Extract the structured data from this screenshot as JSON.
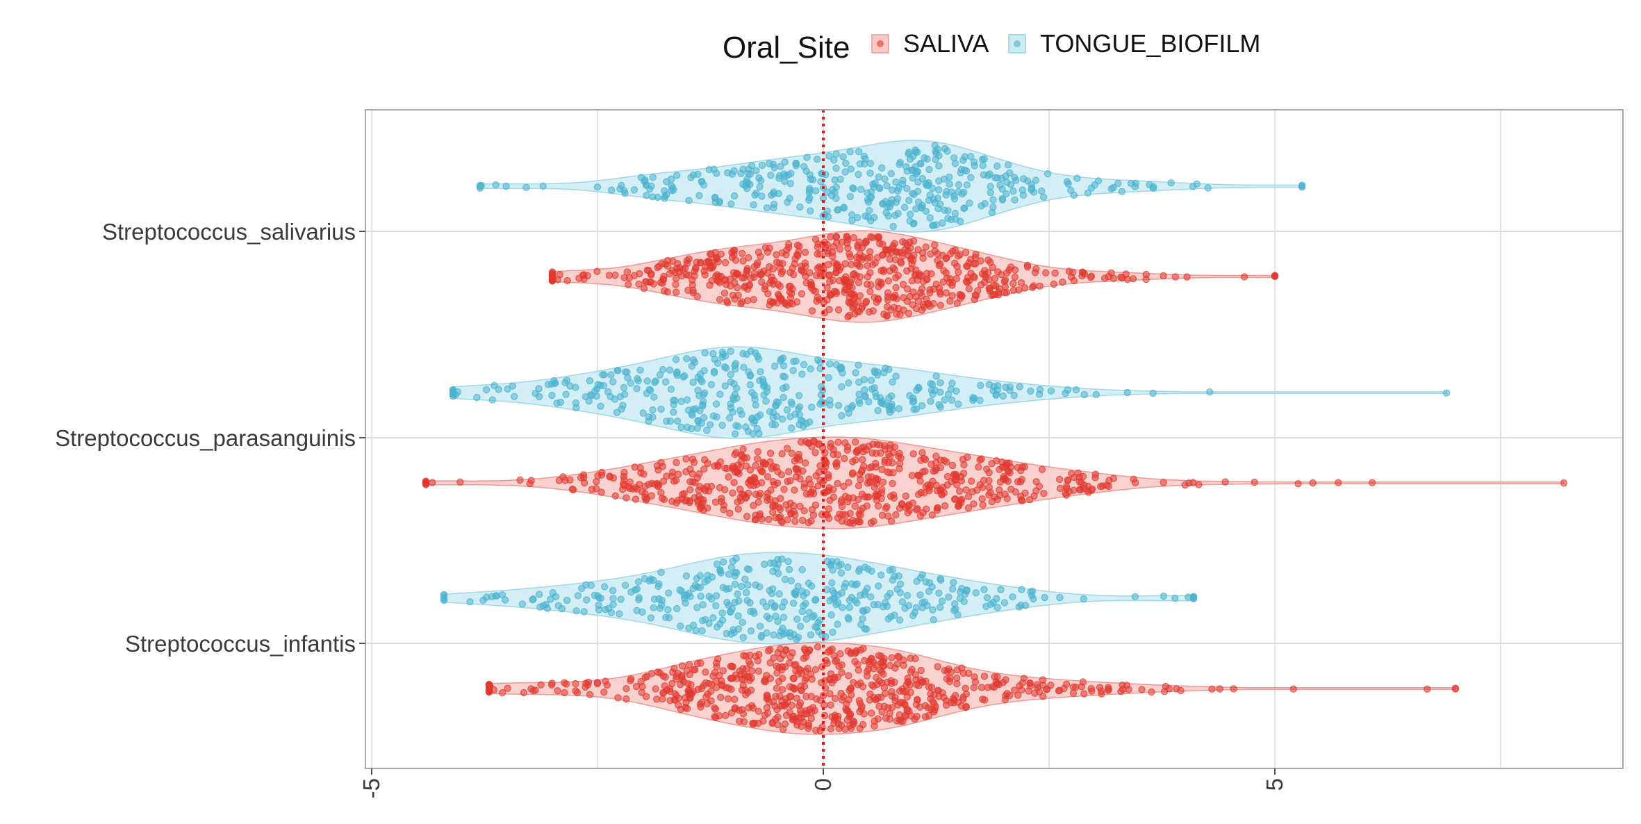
{
  "chart_data": {
    "type": "violin",
    "title": "",
    "xlabel": "",
    "ylabel": "",
    "legend": {
      "title": "Oral_Site",
      "position": "top",
      "entries": [
        {
          "name": "SALIVA",
          "color": "#e0392f",
          "fill": "#f8c9c6"
        },
        {
          "name": "TONGUE_BIOFILM",
          "color": "#4ab3ce",
          "fill": "#cdebf3"
        }
      ]
    },
    "xlim": [
      -5,
      8.6
    ],
    "xticks": [
      -5,
      0,
      5
    ],
    "x_tick_labels": [
      "-5",
      "0",
      "5"
    ],
    "x_gridlines": [
      -5,
      -2.5,
      0,
      2.5,
      5,
      7.5
    ],
    "reference_line": {
      "x": 0,
      "color": "#e31a1c",
      "style": "dotted"
    },
    "categories": [
      "Streptococcus_salivarius",
      "Streptococcus_parasanguinis",
      "Streptococcus_infantis"
    ],
    "series": [
      {
        "name": "TONGUE_BIOFILM",
        "color": "#4ab3ce",
        "groups": [
          {
            "category": "Streptococcus_salivarius",
            "min": -3.8,
            "max": 5.3,
            "peak": 0.6,
            "spread": 1.3,
            "n": 380
          },
          {
            "category": "Streptococcus_parasanguinis",
            "min": -4.1,
            "max": 6.9,
            "peak": -0.6,
            "spread": 1.4,
            "n": 380
          },
          {
            "category": "Streptococcus_infantis",
            "min": -4.2,
            "max": 4.1,
            "peak": -0.5,
            "spread": 1.4,
            "n": 380
          }
        ]
      },
      {
        "name": "SALIVA",
        "color": "#e0392f",
        "groups": [
          {
            "category": "Streptococcus_salivarius",
            "min": -3.0,
            "max": 5.0,
            "peak": 0.2,
            "spread": 1.2,
            "n": 650
          },
          {
            "category": "Streptococcus_parasanguinis",
            "min": -4.4,
            "max": 8.2,
            "peak": 0.1,
            "spread": 1.4,
            "n": 650
          },
          {
            "category": "Streptococcus_infantis",
            "min": -3.7,
            "max": 7.0,
            "peak": 0.0,
            "spread": 1.3,
            "n": 650
          }
        ]
      }
    ]
  }
}
